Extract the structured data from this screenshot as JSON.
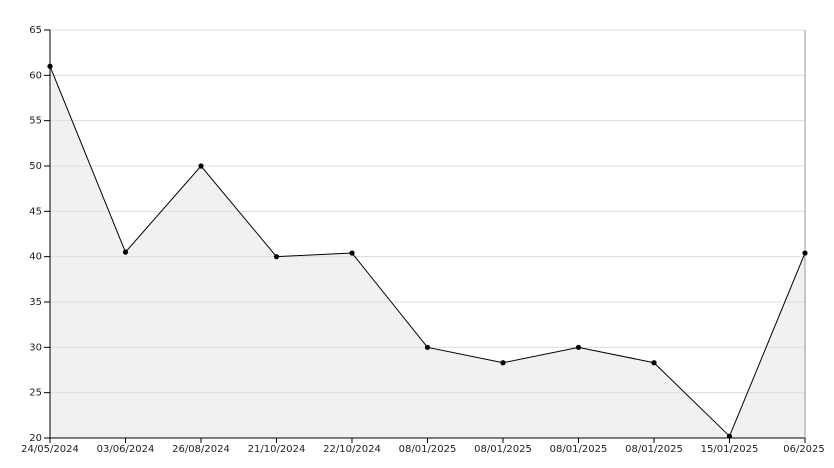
{
  "chart_data": {
    "type": "area",
    "categories": [
      "24/05/2024",
      "03/06/2024",
      "26/08/2024",
      "21/10/2024",
      "22/10/2024",
      "08/01/2025",
      "08/01/2025",
      "08/01/2025",
      "08/01/2025",
      "15/01/2025",
      "06/2025"
    ],
    "values": [
      61,
      40.5,
      50,
      40,
      40.4,
      30,
      28.3,
      30,
      28.3,
      20.2,
      40.4
    ],
    "color": "#000000",
    "fill": "#f1f1f1",
    "ylim": [
      20,
      65
    ],
    "yticks": [
      20,
      25,
      30,
      35,
      40,
      45,
      50,
      55,
      60,
      65
    ],
    "grid": true
  }
}
